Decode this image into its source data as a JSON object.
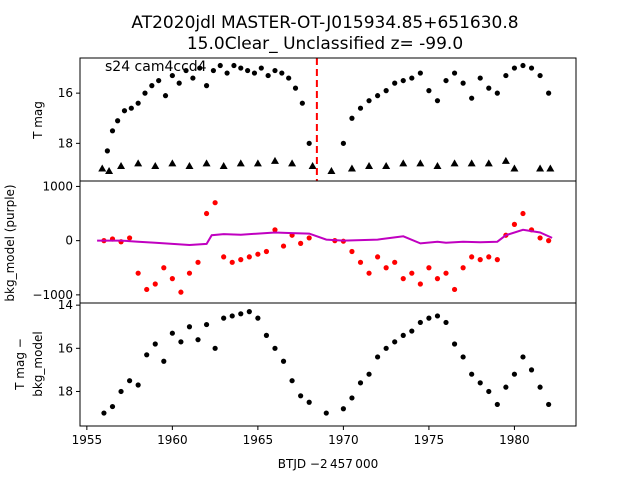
{
  "figure": {
    "title_line1": "AT2020jdl  MASTER-OT-J015934.85+651630.8",
    "title_line2": "15.0Clear_ Unclassified z= -99.0",
    "xlabel": "BTJD −2 457 000"
  },
  "chart_data": [
    {
      "type": "scatter",
      "panel": "top",
      "annotation": "s24 cam4ccd4",
      "ylabel": "T mag",
      "y_inverted": true,
      "xlim": [
        1954.6,
        1983.6
      ],
      "ylim": [
        19.5,
        14.6
      ],
      "yticks": [
        16,
        18
      ],
      "vline": {
        "x": 1968.45,
        "color": "#ff0000",
        "style": "dashed"
      },
      "series": [
        {
          "marker": "circle",
          "color": "#000000",
          "x": [
            1956.2,
            1956.5,
            1956.8,
            1957.2,
            1957.6,
            1958.0,
            1958.4,
            1958.8,
            1959.2,
            1959.6,
            1960.0,
            1960.4,
            1960.8,
            1961.2,
            1961.6,
            1962.0,
            1962.4,
            1962.8,
            1963.2,
            1963.6,
            1964.0,
            1964.4,
            1964.8,
            1965.2,
            1965.6,
            1966.0,
            1966.4,
            1966.8,
            1967.2,
            1967.6,
            1968.0,
            1970.0,
            1970.5,
            1971.0,
            1971.5,
            1972.0,
            1972.5,
            1973.0,
            1973.5,
            1974.0,
            1974.5,
            1975.0,
            1975.5,
            1976.0,
            1976.5,
            1977.0,
            1977.5,
            1978.0,
            1978.5,
            1979.0,
            1979.5,
            1980.0,
            1980.5,
            1981.0,
            1981.5,
            1982.0
          ],
          "y": [
            18.3,
            17.5,
            17.1,
            16.7,
            16.6,
            16.4,
            16.0,
            15.7,
            15.5,
            16.1,
            15.3,
            15.6,
            15.1,
            15.4,
            15.0,
            15.7,
            15.1,
            14.9,
            15.2,
            14.9,
            15.0,
            15.1,
            15.2,
            15.0,
            15.3,
            15.1,
            15.2,
            15.4,
            15.8,
            16.4,
            18.0,
            18.0,
            17.0,
            16.6,
            16.3,
            16.1,
            15.9,
            15.6,
            15.5,
            15.4,
            15.2,
            15.9,
            16.3,
            15.5,
            15.2,
            15.6,
            16.2,
            15.4,
            15.8,
            16.0,
            15.3,
            15.0,
            14.9,
            15.0,
            15.3,
            16.0
          ]
        },
        {
          "marker": "triangle",
          "color": "#000000",
          "x": [
            1955.9,
            1956.3,
            1957.0,
            1958.0,
            1959.0,
            1960.0,
            1961.0,
            1962.0,
            1963.0,
            1964.0,
            1965.0,
            1966.0,
            1967.0,
            1968.2,
            1969.3,
            1970.5,
            1971.5,
            1972.5,
            1973.5,
            1974.5,
            1975.5,
            1976.5,
            1977.5,
            1978.5,
            1979.5,
            1980.0,
            1981.5,
            1982.1
          ],
          "y": [
            19.0,
            19.1,
            18.9,
            18.8,
            18.9,
            18.8,
            18.9,
            18.8,
            18.9,
            18.8,
            18.8,
            18.7,
            18.8,
            18.9,
            19.1,
            19.0,
            18.9,
            18.9,
            18.8,
            18.8,
            18.9,
            18.8,
            18.8,
            18.8,
            18.7,
            19.0,
            19.0,
            19.0
          ]
        }
      ]
    },
    {
      "type": "scatter",
      "panel": "middle",
      "ylabel": "bkg_model (purple)",
      "xlim": [
        1954.6,
        1983.6
      ],
      "ylim": [
        -1150,
        1100
      ],
      "yticks": [
        -1000,
        0,
        1000
      ],
      "series": [
        {
          "marker": "circle",
          "color": "#ff0000",
          "x": [
            1956.0,
            1956.5,
            1957.0,
            1957.5,
            1958.0,
            1958.5,
            1959.0,
            1959.5,
            1960.0,
            1960.5,
            1961.0,
            1961.5,
            1962.0,
            1962.5,
            1963.0,
            1963.5,
            1964.0,
            1964.5,
            1965.0,
            1965.5,
            1966.0,
            1966.5,
            1967.0,
            1967.5,
            1968.0,
            1969.5,
            1970.0,
            1970.5,
            1971.0,
            1971.5,
            1972.0,
            1972.5,
            1973.0,
            1973.5,
            1974.0,
            1974.5,
            1975.0,
            1975.5,
            1976.0,
            1976.5,
            1977.0,
            1977.5,
            1978.0,
            1978.5,
            1979.0,
            1979.5,
            1980.0,
            1980.5,
            1981.0,
            1981.5,
            1982.0
          ],
          "y": [
            0,
            30,
            -20,
            50,
            -600,
            -900,
            -800,
            -500,
            -700,
            -950,
            -600,
            -400,
            500,
            700,
            -300,
            -400,
            -350,
            -300,
            -250,
            -200,
            200,
            -100,
            100,
            -50,
            50,
            0,
            -10,
            -200,
            -400,
            -600,
            -300,
            -500,
            -400,
            -700,
            -600,
            -800,
            -500,
            -700,
            -600,
            -900,
            -500,
            -300,
            -350,
            -300,
            -350,
            100,
            300,
            500,
            200,
            50,
            0
          ]
        },
        {
          "marker": "line",
          "color": "#c000c0",
          "x": [
            1955.6,
            1957.0,
            1958.0,
            1959.0,
            1960.0,
            1961.0,
            1962.0,
            1962.3,
            1963.0,
            1964.0,
            1965.0,
            1966.0,
            1967.0,
            1968.0,
            1969.0,
            1970.0,
            1971.0,
            1972.0,
            1973.0,
            1973.5,
            1974.5,
            1975.5,
            1976.0,
            1977.0,
            1978.0,
            1979.0,
            1979.5,
            1980.5,
            1981.5,
            1982.2
          ],
          "y": [
            0,
            0,
            -20,
            -40,
            -60,
            -80,
            -60,
            100,
            120,
            110,
            130,
            150,
            140,
            130,
            20,
            0,
            10,
            20,
            60,
            80,
            -50,
            -20,
            -40,
            -20,
            -30,
            -20,
            100,
            200,
            150,
            50
          ]
        }
      ]
    },
    {
      "type": "scatter",
      "panel": "bottom",
      "ylabel_line1": "T mag −",
      "ylabel_line2": "bkg_model",
      "y_inverted": true,
      "xlim": [
        1954.6,
        1983.6
      ],
      "ylim": [
        19.6,
        13.9
      ],
      "yticks": [
        14,
        16,
        18
      ],
      "xticks": [
        1955,
        1960,
        1965,
        1970,
        1975,
        1980
      ],
      "series": [
        {
          "marker": "circle",
          "color": "#000000",
          "x": [
            1956.0,
            1956.5,
            1957.0,
            1957.5,
            1958.0,
            1958.5,
            1959.0,
            1959.5,
            1960.0,
            1960.5,
            1961.0,
            1961.5,
            1962.0,
            1962.5,
            1963.0,
            1963.5,
            1964.0,
            1964.5,
            1965.0,
            1965.5,
            1966.0,
            1966.5,
            1967.0,
            1967.5,
            1968.0,
            1969.0,
            1970.0,
            1970.5,
            1971.0,
            1971.5,
            1972.0,
            1972.5,
            1973.0,
            1973.5,
            1974.0,
            1974.5,
            1975.0,
            1975.5,
            1976.0,
            1976.5,
            1977.0,
            1977.5,
            1978.0,
            1978.5,
            1979.0,
            1979.5,
            1980.0,
            1980.5,
            1981.0,
            1981.5,
            1982.0
          ],
          "y": [
            19.0,
            18.7,
            18.0,
            17.5,
            17.7,
            16.3,
            15.8,
            16.6,
            15.3,
            15.7,
            15.0,
            15.6,
            14.9,
            16.0,
            14.6,
            14.5,
            14.4,
            14.3,
            14.6,
            15.4,
            16.0,
            16.6,
            17.5,
            18.2,
            18.5,
            19.0,
            18.8,
            18.3,
            17.6,
            17.2,
            16.4,
            16.0,
            15.7,
            15.4,
            15.2,
            14.8,
            14.6,
            14.5,
            14.8,
            15.8,
            16.4,
            17.2,
            17.6,
            18.0,
            18.6,
            17.8,
            17.2,
            16.4,
            17.0,
            17.8,
            18.6
          ]
        }
      ]
    }
  ]
}
